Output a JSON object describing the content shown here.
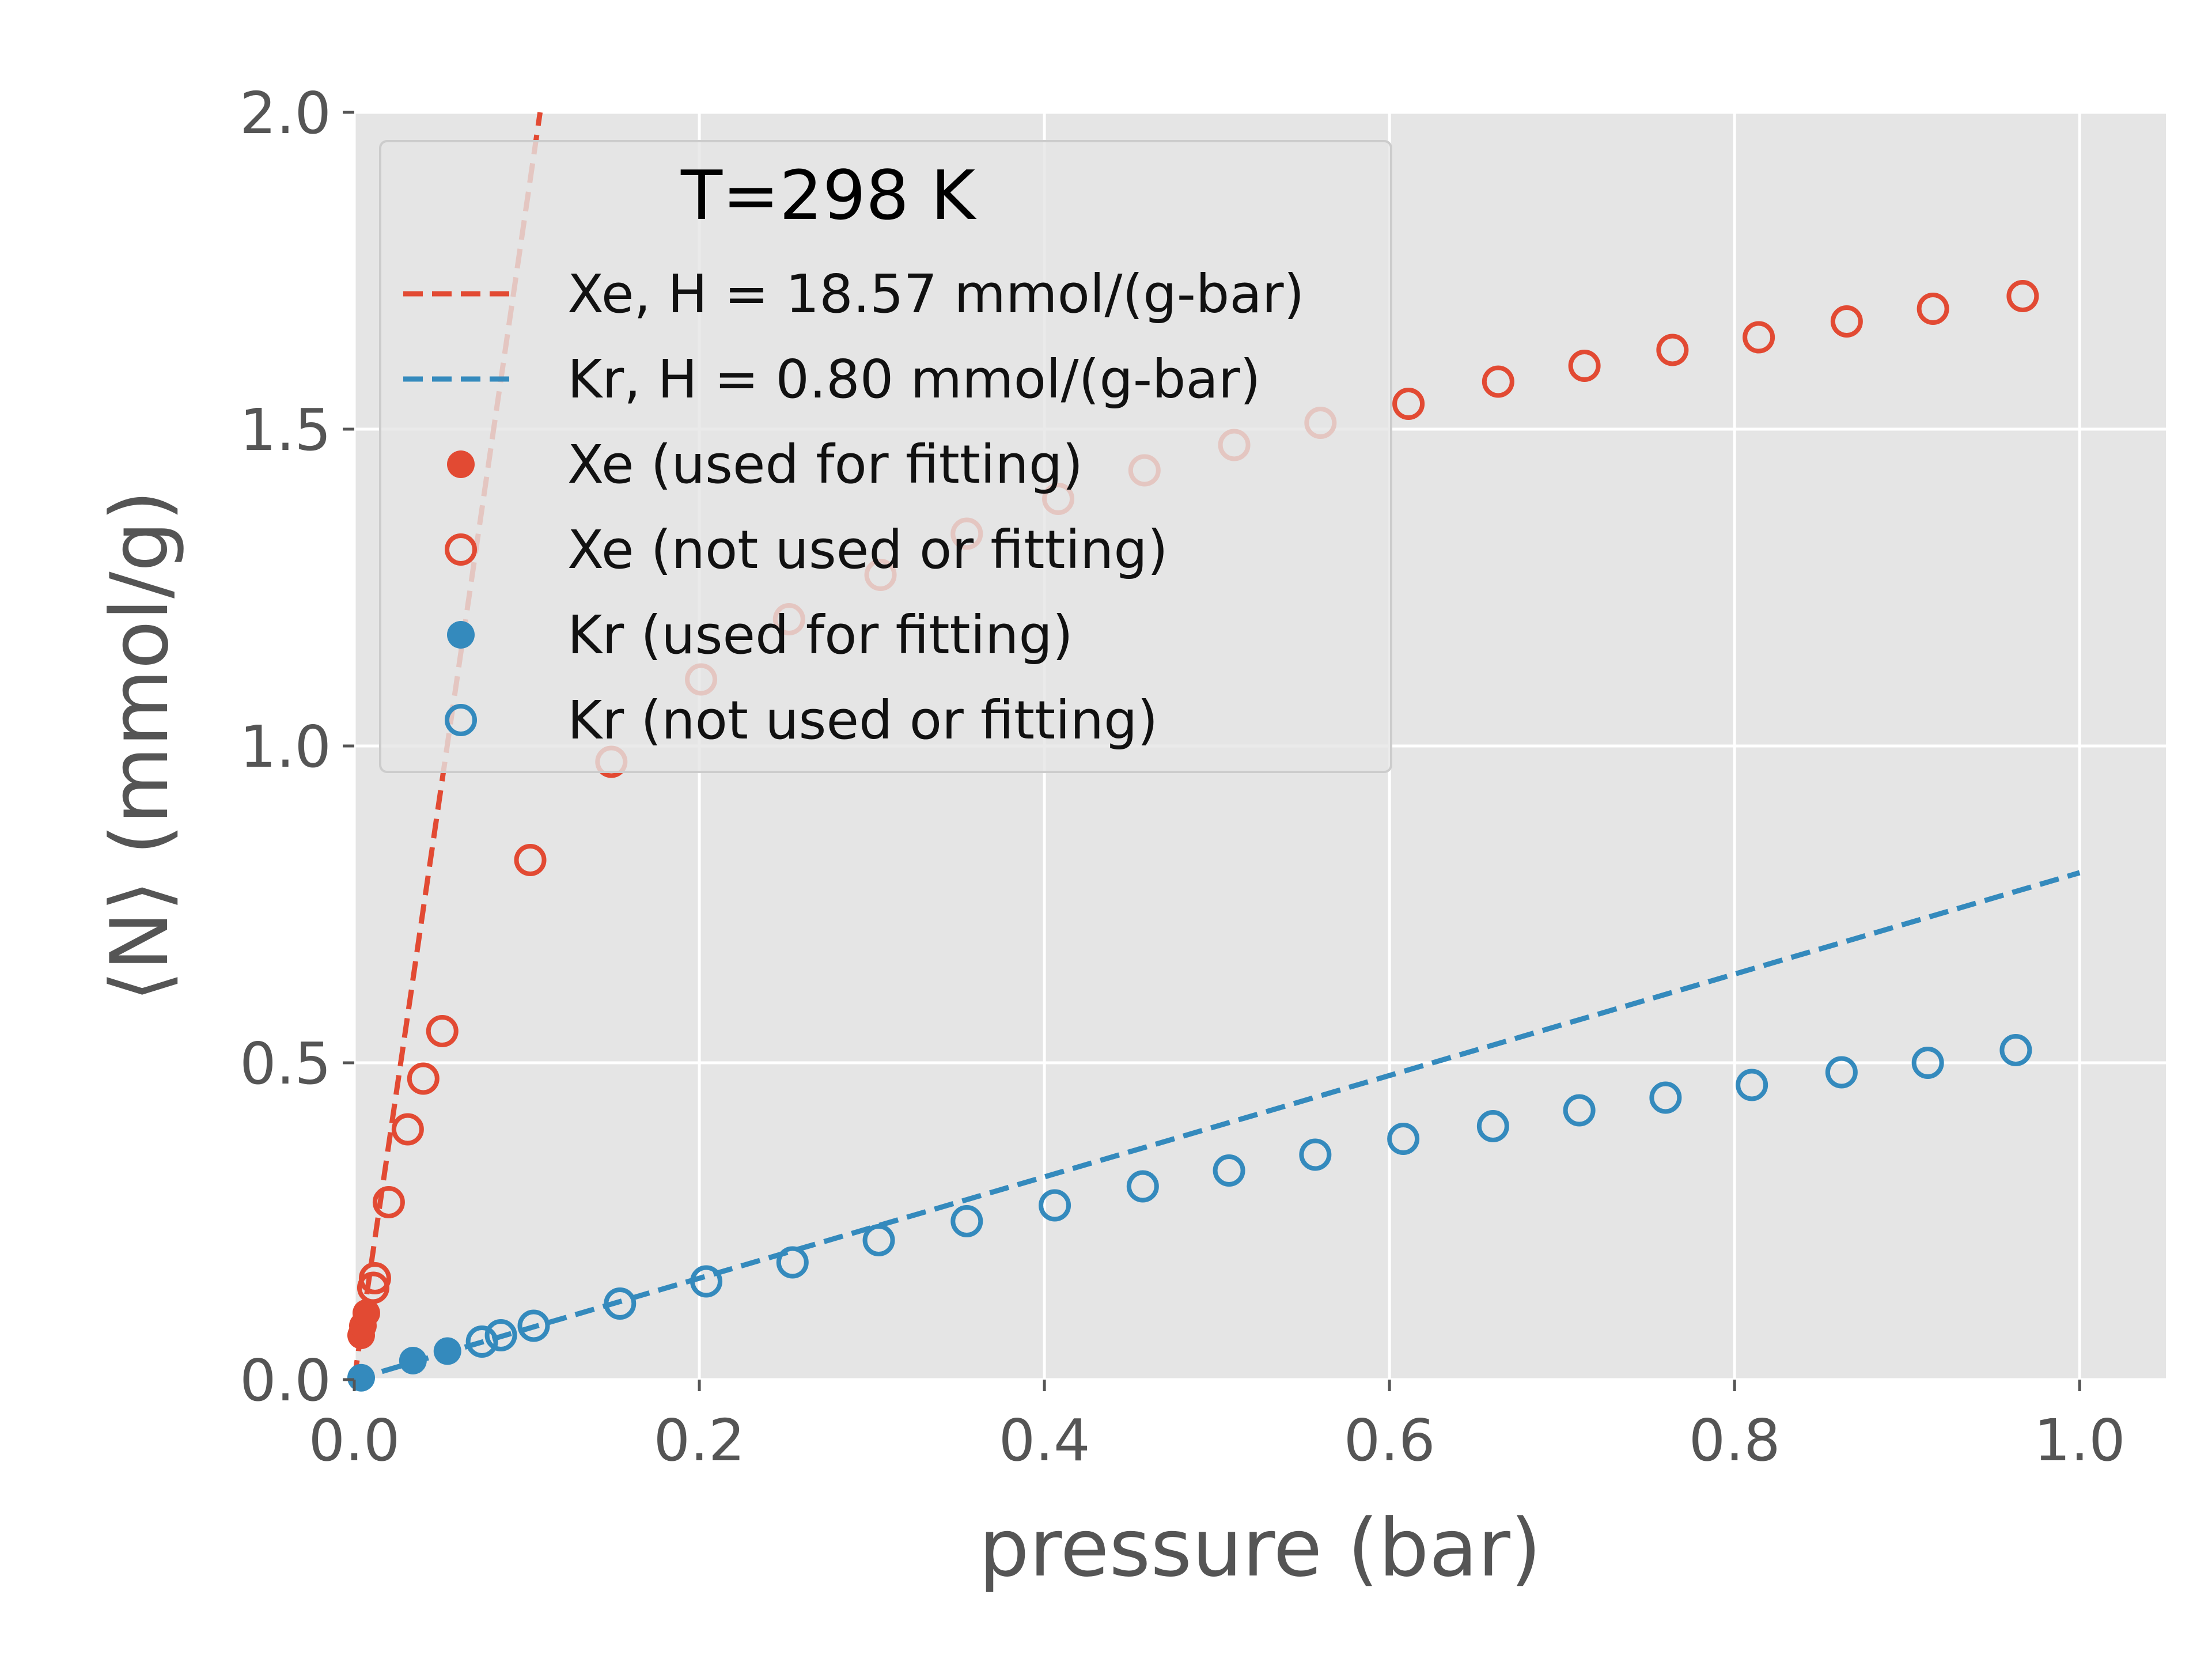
{
  "chart_data": {
    "type": "scatter",
    "title": "",
    "xlabel": "pressure (bar)",
    "ylabel": "⟨N⟩ (mmol/g)",
    "xlim": [
      0.0,
      1.05
    ],
    "ylim": [
      0.0,
      2.0
    ],
    "xticks": [
      "0.0",
      "0.2",
      "0.4",
      "0.6",
      "0.8",
      "1.0"
    ],
    "yticks": [
      "0.0",
      "0.5",
      "1.0",
      "1.5",
      "2.0"
    ],
    "grid": true,
    "legend": {
      "title": "T=298 K",
      "placement": "top-left",
      "entries": [
        "Xe, H = 18.57 mmol/(g-bar)",
        "Kr, H = 0.80 mmol/(g-bar)",
        "Xe (used for fitting)",
        "Xe (not used or fitting)",
        "Kr (used for fitting)",
        "Kr (not used or fitting)"
      ]
    },
    "colors": {
      "xe": "#e24a33",
      "kr": "#348abd",
      "background": "#e5e5e5",
      "grid": "#ffffff"
    },
    "fit_lines": [
      {
        "gas": "Xe",
        "slope": 18.57,
        "x_range": [
          0.0,
          0.1077
        ]
      },
      {
        "gas": "Kr",
        "slope": 0.8,
        "x_range": [
          0.0,
          1.0
        ]
      }
    ],
    "series": [
      {
        "gas": "Xe",
        "fitted": true,
        "x": [
          0.004,
          0.005,
          0.007
        ],
        "y": [
          0.07,
          0.085,
          0.105
        ]
      },
      {
        "gas": "Xe",
        "fitted": false,
        "x": [
          0.011,
          0.012,
          0.02,
          0.031,
          0.04,
          0.051,
          0.102,
          0.149,
          0.201,
          0.252,
          0.305,
          0.355,
          0.408,
          0.458,
          0.51,
          0.56,
          0.611,
          0.663,
          0.713,
          0.764,
          0.814,
          0.865,
          0.915,
          0.967
        ],
        "y": [
          0.145,
          0.16,
          0.28,
          0.395,
          0.475,
          0.55,
          0.82,
          0.975,
          1.105,
          1.2,
          1.27,
          1.335,
          1.39,
          1.435,
          1.475,
          1.51,
          1.54,
          1.575,
          1.6,
          1.625,
          1.645,
          1.67,
          1.69,
          1.71
        ]
      },
      {
        "gas": "Kr",
        "fitted": true,
        "x": [
          0.004,
          0.034,
          0.054
        ],
        "y": [
          0.003,
          0.03,
          0.045
        ]
      },
      {
        "gas": "Kr",
        "fitted": false,
        "x": [
          0.074,
          0.085,
          0.104,
          0.154,
          0.204,
          0.254,
          0.304,
          0.355,
          0.406,
          0.457,
          0.507,
          0.557,
          0.608,
          0.66,
          0.71,
          0.76,
          0.81,
          0.862,
          0.912,
          0.963
        ],
        "y": [
          0.06,
          0.07,
          0.085,
          0.12,
          0.155,
          0.185,
          0.22,
          0.25,
          0.275,
          0.305,
          0.33,
          0.355,
          0.38,
          0.4,
          0.425,
          0.445,
          0.465,
          0.485,
          0.5,
          0.52
        ]
      }
    ]
  }
}
